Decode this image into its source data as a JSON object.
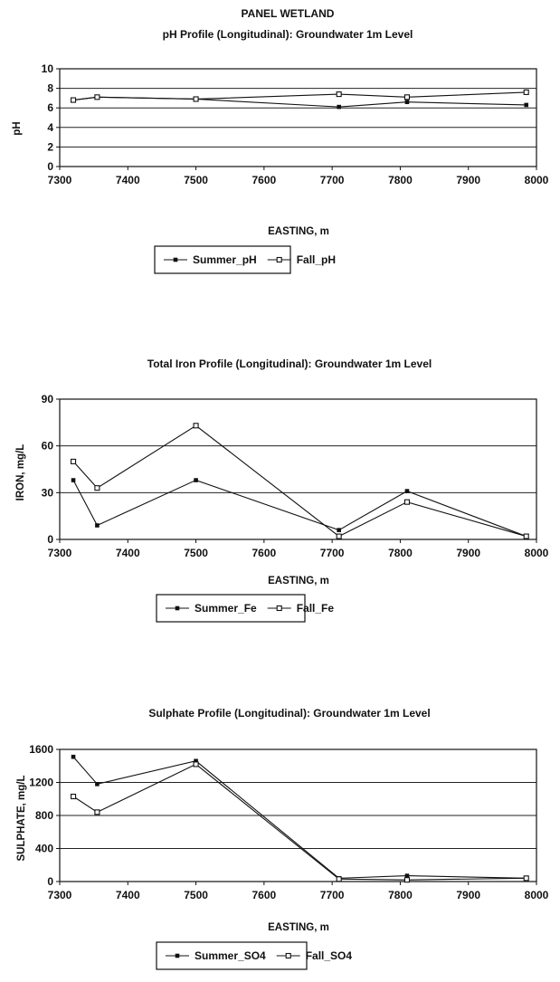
{
  "page_title": "PANEL WETLAND",
  "chart_data": [
    {
      "type": "line",
      "title": "pH Profile (Longitudinal):  Groundwater 1m Level",
      "xlabel": "EASTING, m",
      "ylabel": "pH",
      "xlim": [
        7300,
        8000
      ],
      "ylim": [
        0,
        10
      ],
      "xticks": [
        7300,
        7400,
        7500,
        7600,
        7700,
        7800,
        7900,
        8000
      ],
      "yticks": [
        0,
        2,
        4,
        6,
        8,
        10
      ],
      "grid": "horizontal",
      "legend": "bottom",
      "series": [
        {
          "name": "Summer_pH",
          "marker": "filled-square",
          "x": [
            7320,
            7355,
            7500,
            7710,
            7810,
            7985
          ],
          "y": [
            6.8,
            7.1,
            6.9,
            6.1,
            6.6,
            6.3
          ]
        },
        {
          "name": "Fall_pH",
          "marker": "open-square",
          "x": [
            7320,
            7355,
            7500,
            7710,
            7810,
            7985
          ],
          "y": [
            6.8,
            7.1,
            6.9,
            7.4,
            7.1,
            7.6
          ]
        }
      ]
    },
    {
      "type": "line",
      "title": "Total Iron Profile (Longitudinal):  Groundwater 1m Level",
      "xlabel": "EASTING, m",
      "ylabel": "IRON, mg/L",
      "xlim": [
        7300,
        8000
      ],
      "ylim": [
        0,
        90
      ],
      "xticks": [
        7300,
        7400,
        7500,
        7600,
        7700,
        7800,
        7900,
        8000
      ],
      "yticks": [
        0,
        30,
        60,
        90
      ],
      "grid": "horizontal",
      "legend": "bottom",
      "series": [
        {
          "name": "Summer_Fe",
          "marker": "filled-square",
          "x": [
            7320,
            7355,
            7500,
            7710,
            7810,
            7985
          ],
          "y": [
            38,
            9,
            38,
            6,
            31,
            2
          ]
        },
        {
          "name": "Fall_Fe",
          "marker": "open-square",
          "x": [
            7320,
            7355,
            7500,
            7710,
            7810,
            7985
          ],
          "y": [
            50,
            33,
            73,
            2,
            24,
            2
          ]
        }
      ]
    },
    {
      "type": "line",
      "title": "Sulphate Profile (Longitudinal):  Groundwater 1m Level",
      "xlabel": "EASTING, m",
      "ylabel": "SULPHATE, mg/L",
      "xlim": [
        7300,
        8000
      ],
      "ylim": [
        0,
        1600
      ],
      "xticks": [
        7300,
        7400,
        7500,
        7600,
        7700,
        7800,
        7900,
        8000
      ],
      "yticks": [
        0,
        400,
        800,
        1200,
        1600
      ],
      "grid": "horizontal",
      "legend": "bottom",
      "series": [
        {
          "name": "Summer_SO4",
          "marker": "filled-square",
          "x": [
            7320,
            7355,
            7500,
            7710,
            7810,
            7985
          ],
          "y": [
            1510,
            1180,
            1460,
            40,
            70,
            40
          ]
        },
        {
          "name": "Fall_SO4",
          "marker": "open-square",
          "x": [
            7320,
            7355,
            7500,
            7710,
            7810,
            7985
          ],
          "y": [
            1030,
            840,
            1420,
            30,
            20,
            40
          ]
        }
      ]
    }
  ]
}
